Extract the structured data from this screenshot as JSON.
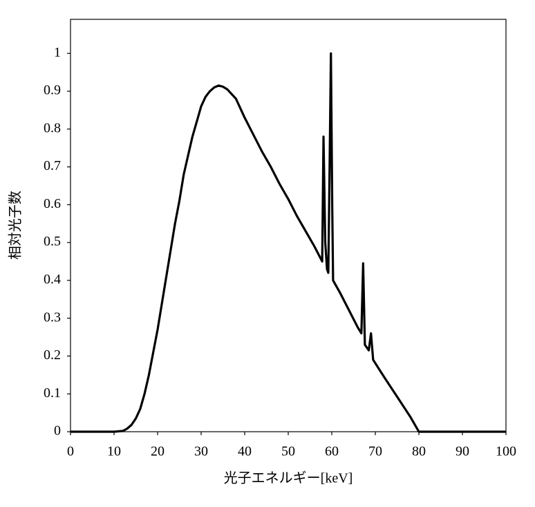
{
  "chart_data": {
    "type": "line",
    "xlabel": "光子エネルギー[keV]",
    "ylabel": "相対光子数",
    "x": [
      0,
      5,
      10,
      12,
      13,
      14,
      15,
      16,
      17,
      18,
      19,
      20,
      21,
      22,
      23,
      24,
      25,
      26,
      27,
      28,
      29,
      30,
      31,
      32,
      33,
      34,
      35,
      36,
      38,
      40,
      42,
      44,
      46,
      48,
      50,
      52,
      54,
      56,
      57.8,
      58.1,
      58.5,
      58.9,
      59.2,
      59.5,
      59.8,
      60.1,
      60.3,
      62,
      64,
      66,
      66.8,
      67.2,
      67.6,
      68.5,
      69.0,
      69.5,
      72,
      74,
      76,
      78,
      80,
      100
    ],
    "series": [
      {
        "color": "#000000",
        "values": [
          0,
          0,
          0,
          0.002,
          0.008,
          0.018,
          0.035,
          0.06,
          0.1,
          0.15,
          0.21,
          0.27,
          0.34,
          0.41,
          0.48,
          0.55,
          0.61,
          0.68,
          0.73,
          0.78,
          0.82,
          0.86,
          0.885,
          0.9,
          0.91,
          0.915,
          0.912,
          0.905,
          0.88,
          0.83,
          0.785,
          0.74,
          0.7,
          0.655,
          0.615,
          0.57,
          0.53,
          0.49,
          0.45,
          0.78,
          0.5,
          0.43,
          0.42,
          0.7,
          1.0,
          0.6,
          0.4,
          0.365,
          0.32,
          0.275,
          0.26,
          0.445,
          0.23,
          0.215,
          0.26,
          0.19,
          0.145,
          0.11,
          0.075,
          0.04,
          0,
          0
        ]
      }
    ],
    "xlim": [
      0,
      100
    ],
    "ylim": [
      0,
      1.09
    ],
    "xticks": [
      0,
      10,
      20,
      30,
      40,
      50,
      60,
      70,
      80,
      90,
      100
    ],
    "yticks": [
      0,
      0.1,
      0.2,
      0.3,
      0.4,
      0.5,
      0.6,
      0.7,
      0.8,
      0.9,
      1
    ],
    "grid": false
  }
}
